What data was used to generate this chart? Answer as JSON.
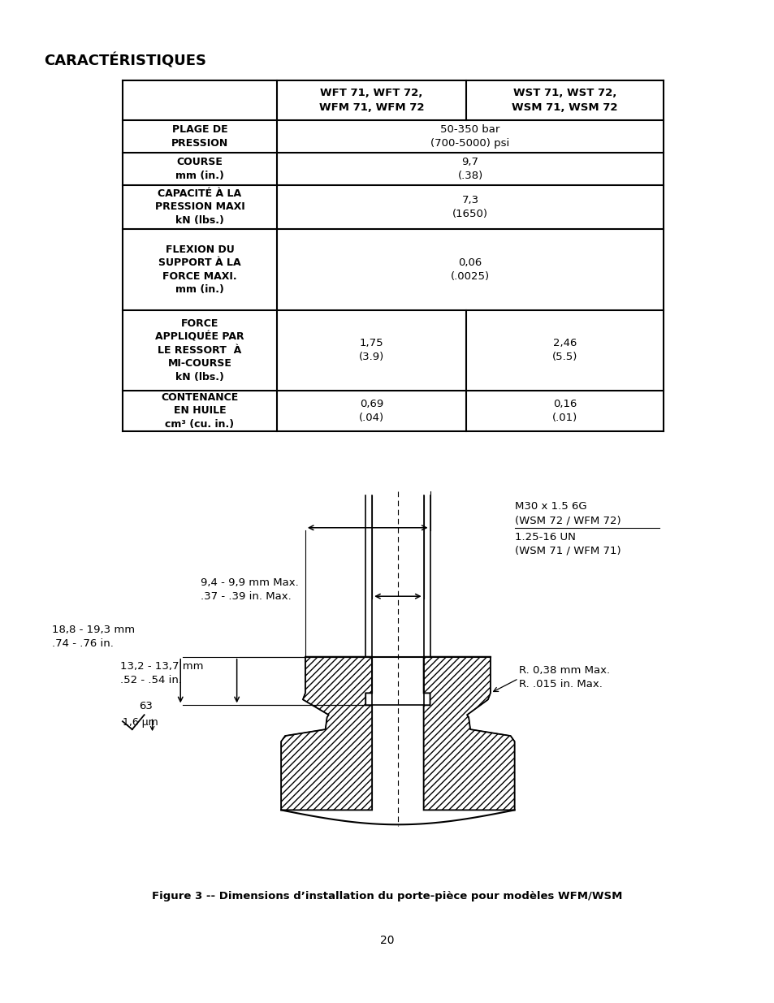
{
  "title": "CARACTÉRISTIQUES",
  "page_number": "20",
  "figure_caption": "Figure 3 -- Dimensions d’installation du porte-pièce pour modèles WFM/WSM",
  "table": {
    "col_headers_left": "",
    "col_headers_mid": "WFT 71, WFT 72,\nWFM 71, WFM 72",
    "col_headers_right": "WST 71, WST 72,\nWSM 71, WSM 72",
    "rows": [
      {
        "label": "PLAGE DE\nPRESSION",
        "mid": "50-350 bar\n(700-5000) psi",
        "right": null,
        "span": true
      },
      {
        "label": "COURSE\nmm (in.)",
        "mid": "9,7\n(.38)",
        "right": null,
        "span": true
      },
      {
        "label": "CAPACITÉ À LA\nPRESSION MAXI\nkN (lbs.)",
        "mid": "7,3\n(1650)",
        "right": null,
        "span": true
      },
      {
        "label": "FLEXION DU\nSUPPORT À LA\nFORCE MAXI.\nmm (in.)",
        "mid": "0,06\n(.0025)",
        "right": null,
        "span": true
      },
      {
        "label": "FORCE\nAPPLIQUÉE PAR\nLE RESSORT  À\nMI-COURSE\nkN (lbs.)",
        "mid": "1,75\n(3.9)",
        "right": "2,46\n(5.5)",
        "span": false
      },
      {
        "label": "CONTENANCE\nEN HUILE\ncm³ (cu. in.)",
        "mid": "0,69\n(.04)",
        "right": "0,16\n(.01)",
        "span": false
      }
    ]
  },
  "bg_color": "#ffffff"
}
